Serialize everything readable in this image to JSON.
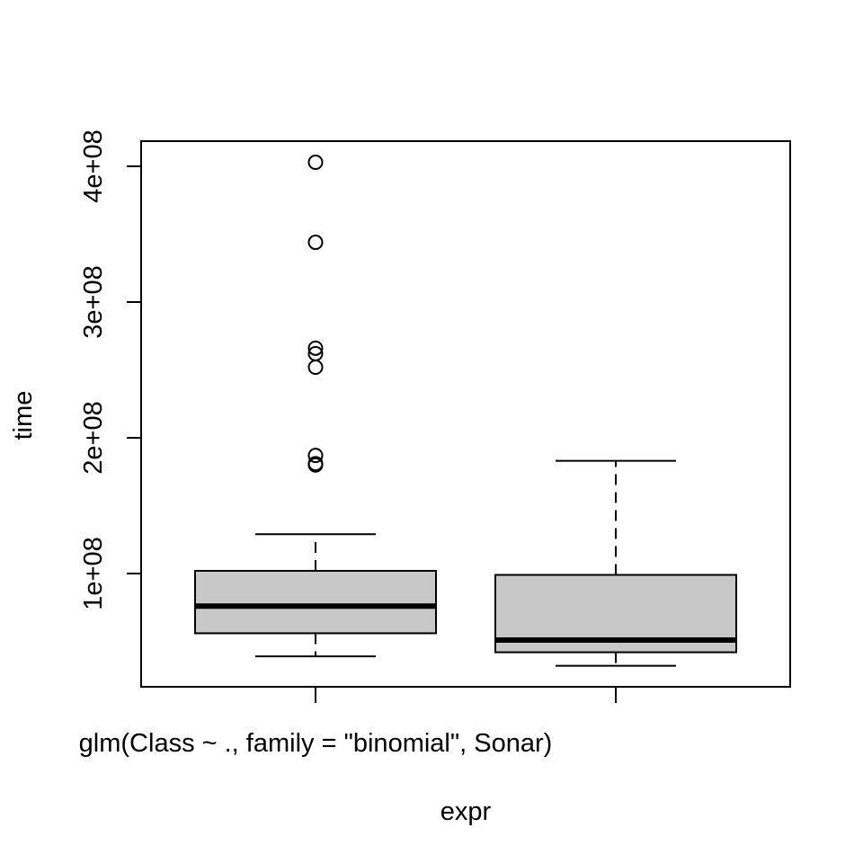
{
  "chart_data": {
    "type": "box",
    "title": "",
    "xlabel": "expr",
    "ylabel": "time",
    "ylim": [
      15000000,
      420000000
    ],
    "yticks": [
      {
        "value": 100000000,
        "label": "1e+08"
      },
      {
        "value": 200000000,
        "label": "2e+08"
      },
      {
        "value": 300000000,
        "label": "3e+08"
      },
      {
        "value": 400000000,
        "label": "4e+08"
      }
    ],
    "categories": [
      "glm(Class ~ ., family = \"binomial\", Sonar)",
      ""
    ],
    "boxes": [
      {
        "label": "glm(Class ~ ., family = \"binomial\", Sonar)",
        "whisker_low": 39000000,
        "q1": 56000000,
        "median": 76000000,
        "q3": 102000000,
        "whisker_high": 129000000,
        "outliers": [
          180000000,
          181000000,
          187000000,
          252000000,
          262000000,
          266000000,
          344000000,
          403000000
        ]
      },
      {
        "label": "",
        "whisker_low": 32000000,
        "q1": 42000000,
        "median": 51000000,
        "q3": 99000000,
        "whisker_high": 183000000,
        "outliers": []
      }
    ],
    "box_fill": "#c8c8c8",
    "grid": false,
    "legend": "none"
  }
}
